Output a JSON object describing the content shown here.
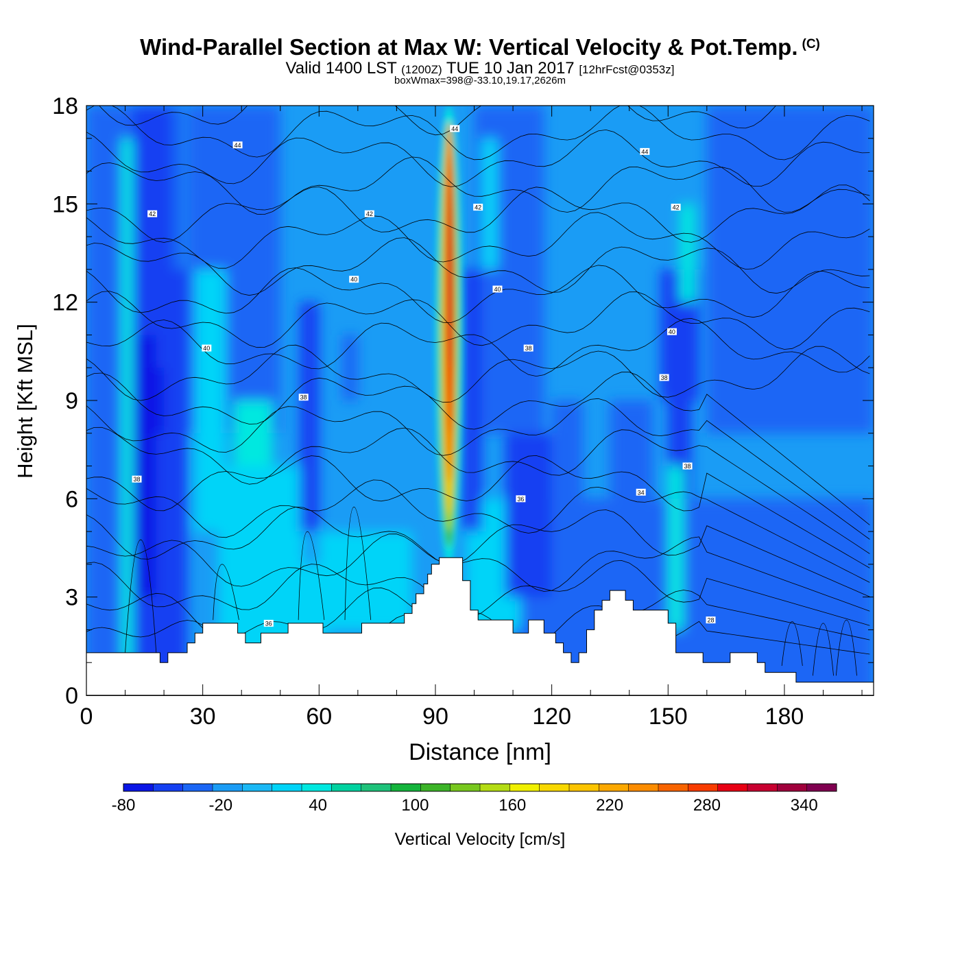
{
  "title": "Wind-Parallel Section at Max W: Vertical Velocity & Pot.Temp.",
  "copyright": "(C)",
  "subtitle": {
    "valid": "Valid 1400 LST",
    "utc": "(1200Z)",
    "date": "TUE 10 Jan 2017",
    "forecast": "[12hrFcst@0353z]"
  },
  "subnote": "boxWmax=398@-33.10,19.17,2626m",
  "chart_data": {
    "type": "heatmap",
    "xlabel": "Distance [nm]",
    "ylabel": "Height [Kft MSL]",
    "xlim": [
      0,
      203
    ],
    "ylim": [
      0,
      18
    ],
    "xticks": [
      0,
      30,
      60,
      90,
      120,
      150,
      180
    ],
    "yticks": [
      0,
      3,
      6,
      9,
      12,
      15,
      18
    ],
    "colorbar": {
      "label": "Vertical Velocity [cm/s]",
      "min": -80,
      "max": 360,
      "step": 20,
      "tick_labels": [
        "-80",
        "-20",
        "40",
        "100",
        "160",
        "220",
        "280",
        "340"
      ],
      "tick_values": [
        -80,
        -20,
        40,
        100,
        160,
        220,
        280,
        340
      ],
      "colors": [
        "#0a16e6",
        "#1540f2",
        "#1a66f5",
        "#1a9cf5",
        "#1ab8f5",
        "#00d4f8",
        "#00e8e0",
        "#00d2a0",
        "#1ec27a",
        "#14b43c",
        "#3cb428",
        "#78c81e",
        "#b4dc14",
        "#f0f000",
        "#f8d800",
        "#fcc400",
        "#fca800",
        "#fc8c00",
        "#f86400",
        "#f83c00",
        "#e80014",
        "#c80030",
        "#a0003c",
        "#800050"
      ]
    },
    "terrain_kft": [
      [
        0,
        1.3
      ],
      [
        19,
        1.3
      ],
      [
        19,
        1.0
      ],
      [
        21,
        1.0
      ],
      [
        21,
        1.3
      ],
      [
        26,
        1.3
      ],
      [
        26,
        1.6
      ],
      [
        28,
        1.6
      ],
      [
        28,
        1.9
      ],
      [
        30,
        1.9
      ],
      [
        30,
        2.2
      ],
      [
        39,
        2.2
      ],
      [
        39,
        1.9
      ],
      [
        41,
        1.9
      ],
      [
        41,
        1.6
      ],
      [
        45,
        1.6
      ],
      [
        45,
        1.9
      ],
      [
        52,
        1.9
      ],
      [
        52,
        2.2
      ],
      [
        61,
        2.2
      ],
      [
        61,
        1.9
      ],
      [
        71,
        1.9
      ],
      [
        71,
        2.2
      ],
      [
        82,
        2.2
      ],
      [
        82,
        2.5
      ],
      [
        84,
        2.5
      ],
      [
        84,
        2.8
      ],
      [
        85,
        2.8
      ],
      [
        85,
        3.1
      ],
      [
        87,
        3.1
      ],
      [
        87,
        3.4
      ],
      [
        88,
        3.4
      ],
      [
        88,
        3.7
      ],
      [
        89,
        3.7
      ],
      [
        89,
        4.0
      ],
      [
        91,
        4.0
      ],
      [
        91,
        4.2
      ],
      [
        97,
        4.2
      ],
      [
        97,
        3.5
      ],
      [
        99,
        3.5
      ],
      [
        99,
        2.6
      ],
      [
        101,
        2.6
      ],
      [
        101,
        2.3
      ],
      [
        110,
        2.3
      ],
      [
        110,
        1.9
      ],
      [
        114,
        1.9
      ],
      [
        114,
        2.3
      ],
      [
        118,
        2.3
      ],
      [
        118,
        1.9
      ],
      [
        121,
        1.9
      ],
      [
        121,
        1.6
      ],
      [
        123,
        1.6
      ],
      [
        123,
        1.3
      ],
      [
        125,
        1.3
      ],
      [
        125,
        1.0
      ],
      [
        127,
        1.0
      ],
      [
        127,
        1.3
      ],
      [
        129,
        1.3
      ],
      [
        129,
        2.0
      ],
      [
        131,
        2.0
      ],
      [
        131,
        2.6
      ],
      [
        133,
        2.6
      ],
      [
        133,
        2.9
      ],
      [
        135,
        2.9
      ],
      [
        135,
        3.2
      ],
      [
        139,
        3.2
      ],
      [
        139,
        2.9
      ],
      [
        141,
        2.9
      ],
      [
        141,
        2.6
      ],
      [
        150,
        2.6
      ],
      [
        150,
        2.2
      ],
      [
        152,
        2.2
      ],
      [
        152,
        1.3
      ],
      [
        159,
        1.3
      ],
      [
        159,
        1.0
      ],
      [
        166,
        1.0
      ],
      [
        166,
        1.3
      ],
      [
        173,
        1.3
      ],
      [
        173,
        1.0
      ],
      [
        175,
        1.0
      ],
      [
        175,
        0.7
      ],
      [
        183,
        0.7
      ],
      [
        183,
        0.4
      ],
      [
        203,
        0.4
      ]
    ],
    "theta_contour_labels": [
      {
        "text": "44",
        "x": 95,
        "y": 17.3
      },
      {
        "text": "44",
        "x": 39,
        "y": 16.8
      },
      {
        "text": "44",
        "x": 144,
        "y": 16.6
      },
      {
        "text": "42",
        "x": 17,
        "y": 14.7
      },
      {
        "text": "42",
        "x": 73,
        "y": 14.7
      },
      {
        "text": "42",
        "x": 101,
        "y": 14.9
      },
      {
        "text": "42",
        "x": 152,
        "y": 14.9
      },
      {
        "text": "40",
        "x": 69,
        "y": 12.7
      },
      {
        "text": "40",
        "x": 106,
        "y": 12.4
      },
      {
        "text": "40",
        "x": 31,
        "y": 10.6
      },
      {
        "text": "40",
        "x": 151,
        "y": 11.1
      },
      {
        "text": "38",
        "x": 114,
        "y": 10.6
      },
      {
        "text": "38",
        "x": 56,
        "y": 9.1
      },
      {
        "text": "38",
        "x": 149,
        "y": 9.7
      },
      {
        "text": "38",
        "x": 13,
        "y": 6.6
      },
      {
        "text": "38",
        "x": 155,
        "y": 7.0
      },
      {
        "text": "36",
        "x": 112,
        "y": 6.0
      },
      {
        "text": "36",
        "x": 47,
        "y": 2.2
      },
      {
        "text": "34",
        "x": 143,
        "y": 6.2
      },
      {
        "text": "28",
        "x": 161,
        "y": 2.3
      }
    ]
  }
}
